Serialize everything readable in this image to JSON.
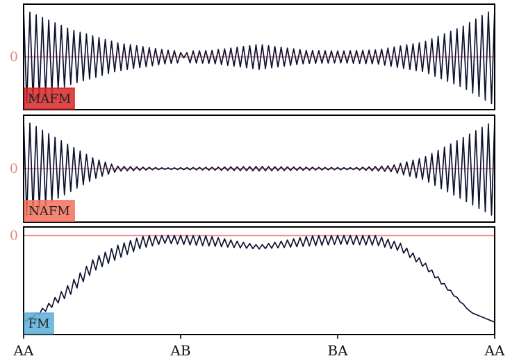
{
  "chart_data": {
    "type": "line",
    "x_ticks": [
      "AA",
      "AB",
      "BA",
      "AA"
    ],
    "zero_label": "0",
    "colors": {
      "trace": "#0d1130",
      "zero_line": "#f08080",
      "axis": "#000000"
    },
    "panels": [
      {
        "name": "MAFM",
        "badge_color": "#d62728",
        "badge_text_color": "#333333",
        "zero_fraction_from_top": 0.5,
        "oscillation_cycles": 75,
        "envelope_points": [
          [
            0.0,
            0.95
          ],
          [
            0.1,
            0.55
          ],
          [
            0.2,
            0.28
          ],
          [
            0.3,
            0.14
          ],
          [
            0.33,
            0.12
          ],
          [
            0.34,
            0.02
          ],
          [
            0.35,
            0.12
          ],
          [
            0.4,
            0.13
          ],
          [
            0.5,
            0.25
          ],
          [
            0.6,
            0.13
          ],
          [
            0.67,
            0.12
          ],
          [
            0.75,
            0.14
          ],
          [
            0.85,
            0.3
          ],
          [
            0.93,
            0.6
          ],
          [
            1.0,
            0.97
          ]
        ],
        "baseline_points": [
          [
            0.0,
            0.0
          ],
          [
            1.0,
            0.0
          ]
        ]
      },
      {
        "name": "NAFM",
        "badge_color": "#f4715a",
        "badge_text_color": "#333333",
        "zero_fraction_from_top": 0.5,
        "oscillation_cycles": 75,
        "envelope_points": [
          [
            0.0,
            0.97
          ],
          [
            0.08,
            0.55
          ],
          [
            0.15,
            0.2
          ],
          [
            0.2,
            0.05
          ],
          [
            0.3,
            0.015
          ],
          [
            0.4,
            0.03
          ],
          [
            0.5,
            0.045
          ],
          [
            0.6,
            0.03
          ],
          [
            0.7,
            0.02
          ],
          [
            0.78,
            0.06
          ],
          [
            0.85,
            0.22
          ],
          [
            0.93,
            0.6
          ],
          [
            1.0,
            0.95
          ]
        ],
        "baseline_points": [
          [
            0.0,
            0.0
          ],
          [
            1.0,
            0.0
          ]
        ]
      },
      {
        "name": "FM",
        "badge_color": "#5aaed6",
        "badge_text_color": "#333333",
        "zero_fraction_from_top": 0.08,
        "oscillation_cycles": 75,
        "envelope_points": [
          [
            0.0,
            0.0
          ],
          [
            0.1,
            0.06
          ],
          [
            0.2,
            0.07
          ],
          [
            0.3,
            0.05
          ],
          [
            0.33,
            0.06
          ],
          [
            0.4,
            0.05
          ],
          [
            0.5,
            0.02
          ],
          [
            0.6,
            0.05
          ],
          [
            0.67,
            0.06
          ],
          [
            0.75,
            0.05
          ],
          [
            0.85,
            0.03
          ],
          [
            0.95,
            0.0
          ],
          [
            1.0,
            0.0
          ]
        ],
        "baseline_points": [
          [
            0.0,
            -0.9
          ],
          [
            0.05,
            -0.75
          ],
          [
            0.1,
            -0.55
          ],
          [
            0.15,
            -0.3
          ],
          [
            0.2,
            -0.17
          ],
          [
            0.25,
            -0.07
          ],
          [
            0.3,
            -0.03
          ],
          [
            0.33,
            -0.03
          ],
          [
            0.4,
            -0.06
          ],
          [
            0.5,
            -0.12
          ],
          [
            0.6,
            -0.06
          ],
          [
            0.67,
            -0.03
          ],
          [
            0.75,
            -0.05
          ],
          [
            0.8,
            -0.12
          ],
          [
            0.85,
            -0.3
          ],
          [
            0.9,
            -0.55
          ],
          [
            0.95,
            -0.8
          ],
          [
            1.0,
            -0.9
          ]
        ]
      }
    ]
  }
}
